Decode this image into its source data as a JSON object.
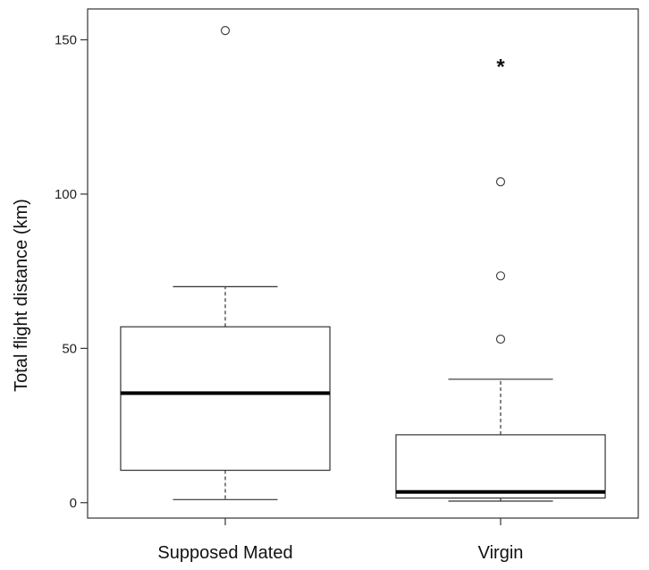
{
  "chart_data": {
    "type": "boxplot",
    "title": "",
    "xlabel": "",
    "ylabel": "Total flight distance (km)",
    "ylim": [
      -5,
      160
    ],
    "yticks": [
      0,
      50,
      100,
      150
    ],
    "categories": [
      "Supposed Mated",
      "Virgin"
    ],
    "boxes": [
      {
        "category": "Supposed Mated",
        "whisker_low": 1,
        "q1": 10.5,
        "median": 35.5,
        "q3": 57,
        "whisker_high": 70,
        "outliers": [
          153
        ],
        "annotation": ""
      },
      {
        "category": "Virgin",
        "whisker_low": 0.5,
        "q1": 1.5,
        "median": 3.5,
        "q3": 22,
        "whisker_high": 40,
        "outliers": [
          53,
          73.5,
          104
        ],
        "annotation": "*"
      }
    ],
    "grid": false,
    "legend": "none"
  }
}
